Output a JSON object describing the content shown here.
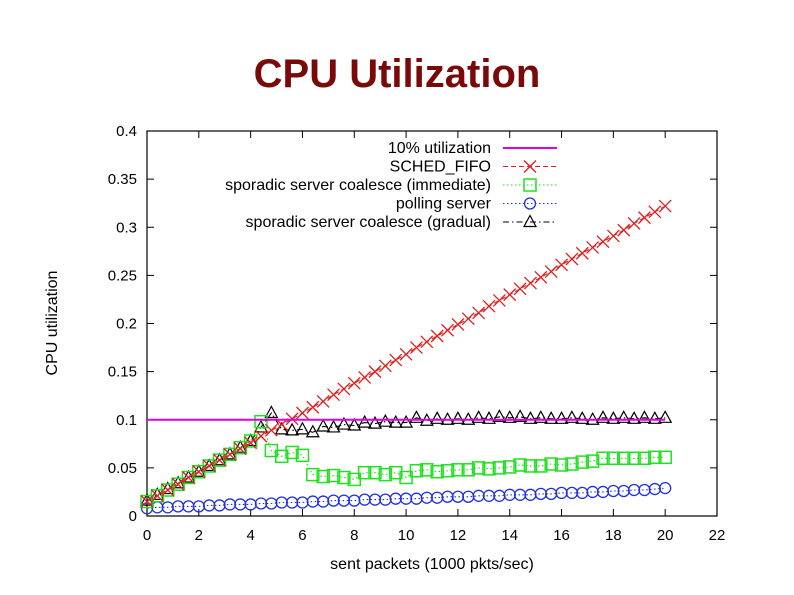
{
  "title": "CPU Utilization",
  "chart_data": {
    "type": "line",
    "title": "CPU Utilization",
    "xlabel": "sent packets (1000 pkts/sec)",
    "ylabel": "CPU utilization",
    "xlim": [
      0,
      22
    ],
    "ylim": [
      0,
      0.4
    ],
    "xticks": [
      0,
      2,
      4,
      6,
      8,
      10,
      12,
      14,
      16,
      18,
      20,
      22
    ],
    "yticks": [
      0,
      0.05,
      0.1,
      0.15,
      0.2,
      0.25,
      0.3,
      0.35,
      0.4
    ],
    "xtick_labels": [
      "0",
      "2",
      "4",
      "6",
      "8",
      "10",
      "12",
      "14",
      "16",
      "18",
      "20",
      "22"
    ],
    "ytick_labels": [
      "0",
      "0.05",
      "0.1",
      "0.15",
      "0.2",
      "0.25",
      "0.3",
      "0.35",
      "0.4"
    ],
    "grid": false,
    "legend_position": "top-right",
    "series": [
      {
        "name": "10% utilization",
        "color": "#e000e0",
        "marker": "none",
        "line": "solid",
        "x": [
          0,
          20
        ],
        "y": [
          0.1,
          0.1
        ]
      },
      {
        "name": "SCHED_FIFO",
        "color": "#e02020",
        "marker": "x",
        "line": "dashed",
        "x": [
          0,
          0.4,
          0.8,
          1.2,
          1.6,
          2.0,
          2.4,
          2.8,
          3.2,
          3.6,
          4.0,
          4.4,
          4.8,
          5.2,
          5.6,
          6.0,
          6.4,
          6.8,
          7.2,
          7.6,
          8.0,
          8.4,
          8.8,
          9.2,
          9.6,
          10.0,
          10.4,
          10.8,
          11.2,
          11.6,
          12.0,
          12.4,
          12.8,
          13.2,
          13.6,
          14.0,
          14.4,
          14.8,
          15.2,
          15.6,
          16.0,
          16.4,
          16.8,
          17.2,
          17.6,
          18.0,
          18.4,
          18.8,
          19.2,
          19.6,
          20.0
        ],
        "y": [
          0.015,
          0.021,
          0.027,
          0.033,
          0.04,
          0.046,
          0.052,
          0.058,
          0.064,
          0.07,
          0.076,
          0.083,
          0.089,
          0.095,
          0.101,
          0.107,
          0.113,
          0.119,
          0.126,
          0.132,
          0.138,
          0.144,
          0.15,
          0.156,
          0.162,
          0.168,
          0.175,
          0.181,
          0.187,
          0.193,
          0.199,
          0.205,
          0.211,
          0.218,
          0.224,
          0.23,
          0.236,
          0.242,
          0.248,
          0.254,
          0.261,
          0.267,
          0.273,
          0.279,
          0.285,
          0.291,
          0.297,
          0.304,
          0.31,
          0.316,
          0.322
        ]
      },
      {
        "name": "sporadic server coalesce (immediate)",
        "color": "#20e020",
        "marker": "square",
        "line": "dotted",
        "x": [
          0,
          0.4,
          0.8,
          1.2,
          1.6,
          2.0,
          2.4,
          2.8,
          3.2,
          3.6,
          4.0,
          4.4,
          4.8,
          5.2,
          5.6,
          6.0,
          6.4,
          6.8,
          7.2,
          7.6,
          8.0,
          8.4,
          8.8,
          9.2,
          9.6,
          10.0,
          10.4,
          10.8,
          11.2,
          11.6,
          12.0,
          12.4,
          12.8,
          13.2,
          13.6,
          14.0,
          14.4,
          14.8,
          15.2,
          15.6,
          16.0,
          16.4,
          16.8,
          17.2,
          17.6,
          18.0,
          18.4,
          18.8,
          19.2,
          19.6,
          20.0
        ],
        "y": [
          0.015,
          0.021,
          0.027,
          0.033,
          0.04,
          0.046,
          0.052,
          0.058,
          0.064,
          0.071,
          0.078,
          0.098,
          0.068,
          0.062,
          0.066,
          0.063,
          0.043,
          0.041,
          0.042,
          0.04,
          0.038,
          0.045,
          0.045,
          0.043,
          0.045,
          0.04,
          0.047,
          0.048,
          0.046,
          0.047,
          0.048,
          0.048,
          0.05,
          0.049,
          0.05,
          0.051,
          0.053,
          0.052,
          0.052,
          0.054,
          0.053,
          0.054,
          0.056,
          0.057,
          0.06,
          0.06,
          0.06,
          0.06,
          0.06,
          0.061,
          0.061
        ]
      },
      {
        "name": "polling server",
        "color": "#2030e0",
        "marker": "circle",
        "line": "dotted",
        "x": [
          0,
          0.4,
          0.8,
          1.2,
          1.6,
          2.0,
          2.4,
          2.8,
          3.2,
          3.6,
          4.0,
          4.4,
          4.8,
          5.2,
          5.6,
          6.0,
          6.4,
          6.8,
          7.2,
          7.6,
          8.0,
          8.4,
          8.8,
          9.2,
          9.6,
          10.0,
          10.4,
          10.8,
          11.2,
          11.6,
          12.0,
          12.4,
          12.8,
          13.2,
          13.6,
          14.0,
          14.4,
          14.8,
          15.2,
          15.6,
          16.0,
          16.4,
          16.8,
          17.2,
          17.6,
          18.0,
          18.4,
          18.8,
          19.2,
          19.6,
          20.0
        ],
        "y": [
          0.008,
          0.009,
          0.009,
          0.01,
          0.01,
          0.01,
          0.011,
          0.011,
          0.012,
          0.012,
          0.012,
          0.013,
          0.013,
          0.014,
          0.014,
          0.014,
          0.015,
          0.015,
          0.016,
          0.016,
          0.016,
          0.017,
          0.017,
          0.017,
          0.018,
          0.018,
          0.018,
          0.019,
          0.019,
          0.02,
          0.02,
          0.02,
          0.021,
          0.021,
          0.021,
          0.022,
          0.022,
          0.022,
          0.023,
          0.023,
          0.024,
          0.024,
          0.024,
          0.025,
          0.025,
          0.026,
          0.026,
          0.027,
          0.027,
          0.028,
          0.029
        ]
      },
      {
        "name": "sporadic server coalesce (gradual)",
        "color": "#000000",
        "marker": "triangle",
        "line": "dashdot",
        "x": [
          0,
          0.4,
          0.8,
          1.2,
          1.6,
          2.0,
          2.4,
          2.8,
          3.2,
          3.6,
          4.0,
          4.4,
          4.8,
          5.2,
          5.6,
          6.0,
          6.4,
          6.8,
          7.2,
          7.6,
          8.0,
          8.4,
          8.8,
          9.2,
          9.6,
          10.0,
          10.4,
          10.8,
          11.2,
          11.6,
          12.0,
          12.4,
          12.8,
          13.2,
          13.6,
          14.0,
          14.4,
          14.8,
          15.2,
          15.6,
          16.0,
          16.4,
          16.8,
          17.2,
          17.6,
          18.0,
          18.4,
          18.8,
          19.2,
          19.6,
          20.0
        ],
        "y": [
          0.016,
          0.022,
          0.028,
          0.034,
          0.04,
          0.046,
          0.052,
          0.058,
          0.064,
          0.071,
          0.078,
          0.092,
          0.107,
          0.09,
          0.089,
          0.09,
          0.087,
          0.093,
          0.092,
          0.095,
          0.094,
          0.097,
          0.096,
          0.098,
          0.097,
          0.097,
          0.102,
          0.099,
          0.101,
          0.1,
          0.101,
          0.1,
          0.102,
          0.101,
          0.103,
          0.102,
          0.103,
          0.101,
          0.102,
          0.101,
          0.101,
          0.102,
          0.101,
          0.1,
          0.102,
          0.101,
          0.102,
          0.101,
          0.102,
          0.101,
          0.102
        ]
      }
    ]
  }
}
